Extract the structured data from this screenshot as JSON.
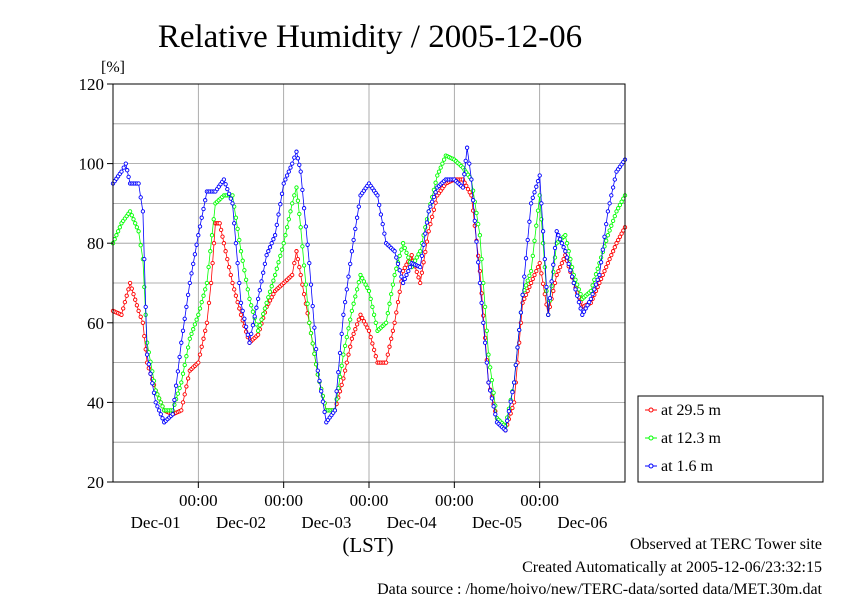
{
  "page_title": "Relative Humidity / 2005-12-06",
  "notes": {
    "observed": "Observed at TERC Tower site",
    "created": "Created Automatically at 2005-12-06/23:32:15",
    "source": "Data source : /home/hoivo/new/TERC-data/sorted data/MET.30m.dat"
  },
  "colors": {
    "at_29_5m": "#ff0000",
    "at_12_3m": "#00ff00",
    "at_1_6m": "#0000ff"
  },
  "chart_data": {
    "type": "line",
    "title": "Relative Humidity / 2005-12-06",
    "ylabel": "[%]",
    "xlabel": "(LST)",
    "ylim": [
      20,
      120
    ],
    "yticks": [
      20,
      40,
      60,
      80,
      100,
      120
    ],
    "xlim": [
      0,
      6
    ],
    "x_unit": "days since 2005-11-30 00:00 LST",
    "xticks": [
      {
        "x": 1,
        "label": "00:00",
        "date": "Dec-01"
      },
      {
        "x": 2,
        "label": "00:00",
        "date": "Dec-02"
      },
      {
        "x": 3,
        "label": "00:00",
        "date": "Dec-03"
      },
      {
        "x": 4,
        "label": "00:00",
        "date": "Dec-04"
      },
      {
        "x": 5,
        "label": "00:00",
        "date": "Dec-05"
      },
      {
        "x": 6,
        "label": "",
        "date": "Dec-06"
      }
    ],
    "grid": true,
    "legend_position": "bottom-right, outside plot",
    "series": [
      {
        "name": "at 29.5 m",
        "color": "#ff0000",
        "points": [
          [
            0.0,
            63
          ],
          [
            0.1,
            62
          ],
          [
            0.2,
            70
          ],
          [
            0.3,
            63
          ],
          [
            0.35,
            60
          ],
          [
            0.4,
            50
          ],
          [
            0.5,
            43
          ],
          [
            0.6,
            38
          ],
          [
            0.7,
            37
          ],
          [
            0.8,
            38
          ],
          [
            0.9,
            48
          ],
          [
            1.0,
            50
          ],
          [
            1.1,
            60
          ],
          [
            1.15,
            70
          ],
          [
            1.2,
            85
          ],
          [
            1.25,
            85
          ],
          [
            1.3,
            80
          ],
          [
            1.4,
            70
          ],
          [
            1.5,
            62
          ],
          [
            1.6,
            55
          ],
          [
            1.7,
            57
          ],
          [
            1.8,
            64
          ],
          [
            1.9,
            68
          ],
          [
            2.0,
            70
          ],
          [
            2.1,
            72
          ],
          [
            2.15,
            78
          ],
          [
            2.2,
            72
          ],
          [
            2.3,
            60
          ],
          [
            2.4,
            47
          ],
          [
            2.5,
            38
          ],
          [
            2.6,
            38
          ],
          [
            2.7,
            46
          ],
          [
            2.8,
            56
          ],
          [
            2.9,
            62
          ],
          [
            3.0,
            58
          ],
          [
            3.1,
            50
          ],
          [
            3.2,
            50
          ],
          [
            3.3,
            60
          ],
          [
            3.4,
            73
          ],
          [
            3.5,
            77
          ],
          [
            3.6,
            70
          ],
          [
            3.7,
            83
          ],
          [
            3.8,
            92
          ],
          [
            3.9,
            95
          ],
          [
            4.0,
            96
          ],
          [
            4.1,
            96
          ],
          [
            4.2,
            92
          ],
          [
            4.3,
            73
          ],
          [
            4.4,
            45
          ],
          [
            4.5,
            36
          ],
          [
            4.6,
            33
          ],
          [
            4.7,
            40
          ],
          [
            4.8,
            65
          ],
          [
            4.9,
            70
          ],
          [
            5.0,
            75
          ],
          [
            5.1,
            62
          ],
          [
            5.2,
            72
          ],
          [
            5.3,
            77
          ],
          [
            5.4,
            70
          ],
          [
            5.5,
            64
          ],
          [
            5.6,
            65
          ],
          [
            5.7,
            70
          ],
          [
            5.8,
            75
          ],
          [
            5.9,
            80
          ],
          [
            6.0,
            84
          ]
        ]
      },
      {
        "name": "at 12.3 m",
        "color": "#00ff00",
        "points": [
          [
            0.0,
            80
          ],
          [
            0.1,
            85
          ],
          [
            0.2,
            88
          ],
          [
            0.3,
            83
          ],
          [
            0.35,
            76
          ],
          [
            0.4,
            55
          ],
          [
            0.5,
            43
          ],
          [
            0.6,
            38
          ],
          [
            0.7,
            38
          ],
          [
            0.8,
            45
          ],
          [
            0.9,
            56
          ],
          [
            1.0,
            62
          ],
          [
            1.1,
            70
          ],
          [
            1.2,
            90
          ],
          [
            1.3,
            92
          ],
          [
            1.4,
            92
          ],
          [
            1.5,
            78
          ],
          [
            1.6,
            66
          ],
          [
            1.7,
            58
          ],
          [
            1.8,
            65
          ],
          [
            1.9,
            72
          ],
          [
            2.0,
            80
          ],
          [
            2.1,
            90
          ],
          [
            2.15,
            94
          ],
          [
            2.2,
            84
          ],
          [
            2.3,
            60
          ],
          [
            2.4,
            47
          ],
          [
            2.5,
            38
          ],
          [
            2.6,
            38
          ],
          [
            2.7,
            52
          ],
          [
            2.8,
            63
          ],
          [
            2.9,
            72
          ],
          [
            3.0,
            68
          ],
          [
            3.1,
            58
          ],
          [
            3.2,
            60
          ],
          [
            3.3,
            72
          ],
          [
            3.4,
            80
          ],
          [
            3.5,
            74
          ],
          [
            3.6,
            78
          ],
          [
            3.7,
            88
          ],
          [
            3.8,
            97
          ],
          [
            3.9,
            102
          ],
          [
            4.0,
            101
          ],
          [
            4.1,
            99
          ],
          [
            4.2,
            96
          ],
          [
            4.3,
            82
          ],
          [
            4.4,
            52
          ],
          [
            4.5,
            36
          ],
          [
            4.6,
            34
          ],
          [
            4.7,
            45
          ],
          [
            4.8,
            67
          ],
          [
            4.9,
            73
          ],
          [
            5.0,
            92
          ],
          [
            5.1,
            62
          ],
          [
            5.2,
            80
          ],
          [
            5.3,
            82
          ],
          [
            5.4,
            72
          ],
          [
            5.5,
            66
          ],
          [
            5.6,
            68
          ],
          [
            5.7,
            75
          ],
          [
            5.8,
            82
          ],
          [
            5.9,
            88
          ],
          [
            6.0,
            92
          ]
        ]
      },
      {
        "name": "at 1.6 m",
        "color": "#0000ff",
        "points": [
          [
            0.0,
            95
          ],
          [
            0.1,
            98
          ],
          [
            0.15,
            100
          ],
          [
            0.2,
            95
          ],
          [
            0.3,
            95
          ],
          [
            0.35,
            88
          ],
          [
            0.4,
            52
          ],
          [
            0.5,
            40
          ],
          [
            0.6,
            35
          ],
          [
            0.7,
            37
          ],
          [
            0.8,
            55
          ],
          [
            0.9,
            70
          ],
          [
            1.0,
            82
          ],
          [
            1.1,
            93
          ],
          [
            1.2,
            93
          ],
          [
            1.3,
            96
          ],
          [
            1.4,
            90
          ],
          [
            1.5,
            65
          ],
          [
            1.6,
            55
          ],
          [
            1.7,
            66
          ],
          [
            1.8,
            77
          ],
          [
            1.9,
            82
          ],
          [
            2.0,
            95
          ],
          [
            2.1,
            100
          ],
          [
            2.15,
            103
          ],
          [
            2.2,
            98
          ],
          [
            2.3,
            75
          ],
          [
            2.4,
            48
          ],
          [
            2.5,
            35
          ],
          [
            2.6,
            38
          ],
          [
            2.7,
            62
          ],
          [
            2.8,
            78
          ],
          [
            2.9,
            92
          ],
          [
            3.0,
            95
          ],
          [
            3.1,
            92
          ],
          [
            3.2,
            80
          ],
          [
            3.3,
            78
          ],
          [
            3.4,
            70
          ],
          [
            3.5,
            75
          ],
          [
            3.6,
            74
          ],
          [
            3.7,
            88
          ],
          [
            3.8,
            94
          ],
          [
            3.9,
            96
          ],
          [
            4.0,
            96
          ],
          [
            4.1,
            94
          ],
          [
            4.15,
            104
          ],
          [
            4.2,
            96
          ],
          [
            4.3,
            70
          ],
          [
            4.4,
            45
          ],
          [
            4.5,
            35
          ],
          [
            4.6,
            33
          ],
          [
            4.7,
            45
          ],
          [
            4.8,
            67
          ],
          [
            4.9,
            90
          ],
          [
            5.0,
            97
          ],
          [
            5.1,
            62
          ],
          [
            5.2,
            83
          ],
          [
            5.3,
            78
          ],
          [
            5.4,
            70
          ],
          [
            5.5,
            62
          ],
          [
            5.6,
            66
          ],
          [
            5.7,
            72
          ],
          [
            5.8,
            88
          ],
          [
            5.9,
            98
          ],
          [
            6.0,
            101
          ]
        ]
      }
    ]
  }
}
